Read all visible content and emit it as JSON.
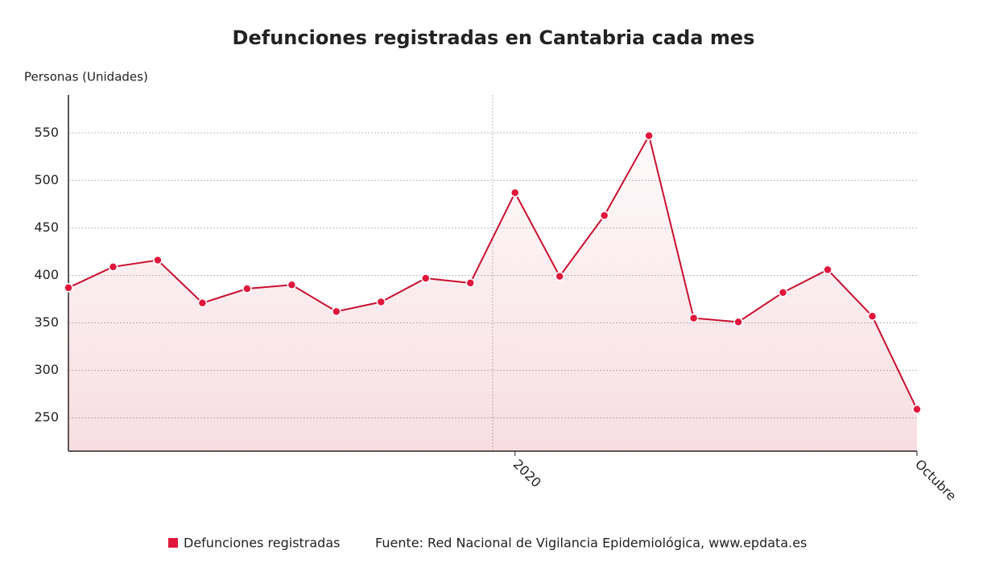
{
  "chart_data": {
    "type": "line",
    "title": "Defunciones registradas en Cantabria cada mes",
    "y_label": "Personas (Unidades)",
    "categories": [
      null,
      null,
      null,
      null,
      null,
      null,
      null,
      null,
      null,
      null,
      "2020",
      null,
      null,
      null,
      null,
      null,
      null,
      null,
      null,
      "Octubre"
    ],
    "series": [
      {
        "name": "Defunciones registradas",
        "color": "#c8102e",
        "values": [
          387,
          409,
          416,
          371,
          386,
          390,
          362,
          372,
          397,
          392,
          487,
          399,
          463,
          547,
          355,
          351,
          382,
          406,
          357,
          259
        ]
      }
    ],
    "ylim": [
      215,
      590
    ],
    "yticks": [
      250,
      300,
      350,
      400,
      450,
      500,
      550
    ],
    "grid": true,
    "source": "Fuente: Red Nacional de Vigilancia Epidemiológica, www.epdata.es"
  }
}
